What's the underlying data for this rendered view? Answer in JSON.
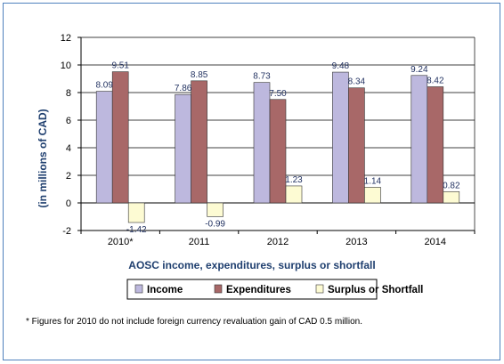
{
  "chart_data": {
    "type": "bar",
    "title": "AOSC income, expenditures, surplus or shortfall",
    "xlabel": "AOSC income, expenditures, surplus or shortfall",
    "ylabel": "(in millions of CAD)",
    "categories": [
      "2010*",
      "2011",
      "2012",
      "2013",
      "2014"
    ],
    "ylim": [
      -2,
      12
    ],
    "yticks": [
      -2,
      0,
      2,
      4,
      6,
      8,
      10,
      12
    ],
    "grid": true,
    "legend_position": "bottom",
    "series": [
      {
        "name": "Income",
        "color": "#bdb8de",
        "values": [
          8.09,
          7.86,
          8.73,
          9.48,
          9.24
        ]
      },
      {
        "name": "Expenditures",
        "color": "#a86868",
        "values": [
          9.51,
          8.85,
          7.5,
          8.34,
          8.42
        ]
      },
      {
        "name": "Surplus or Shortfall",
        "color": "#fdfbd3",
        "values": [
          -1.42,
          -0.99,
          1.23,
          1.14,
          0.82
        ]
      }
    ],
    "data_labels": [
      [
        "8.09",
        "7.86",
        "8.73",
        "9.48",
        "9.24"
      ],
      [
        "9.51",
        "8.85",
        "7.50",
        "8.34",
        "8.42"
      ],
      [
        "-1.42",
        "-0.99",
        "1.23",
        "1.14",
        "0.82"
      ]
    ]
  },
  "footnote": "* Figures for 2010 do not include foreign currency revaluation gain of CAD 0.5 million.",
  "colors": {
    "frame": "#4f81bd",
    "plot_background": "#ffffff",
    "gridline": "#000000"
  }
}
